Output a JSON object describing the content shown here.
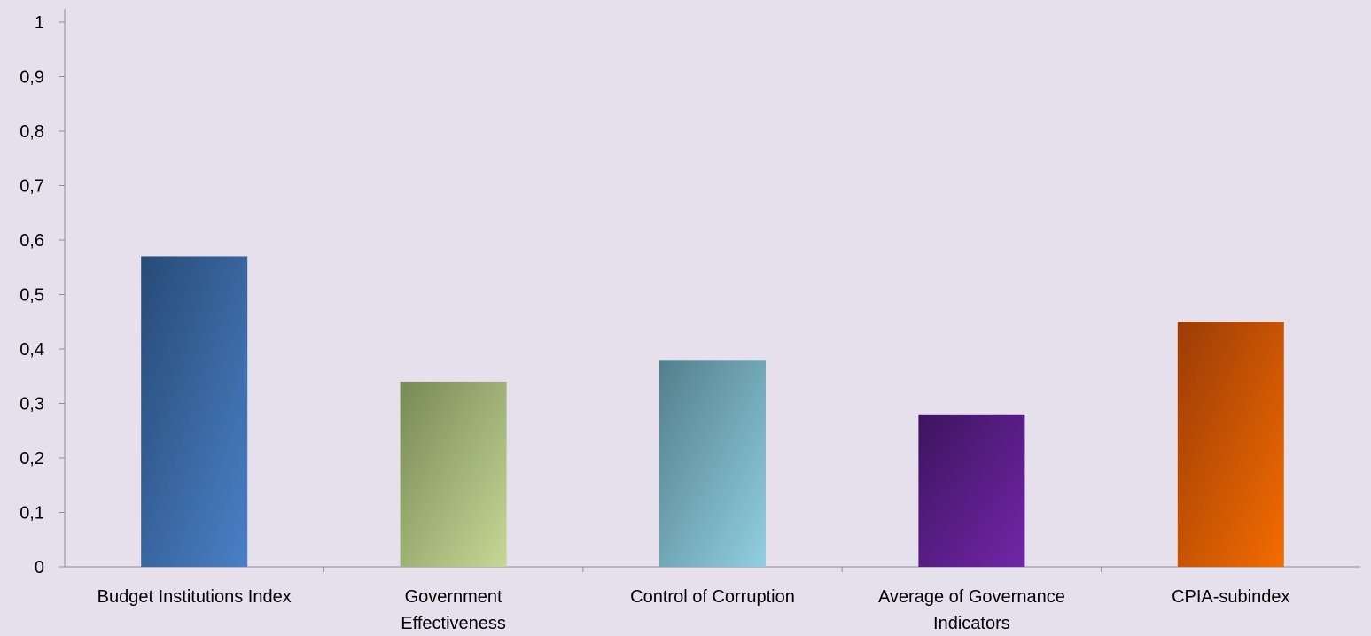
{
  "colors": {
    "background": "#e6e0ec",
    "axis": "#8c8c8c"
  },
  "chart_data": {
    "type": "bar",
    "title": "",
    "xlabel": "",
    "ylabel": "",
    "ylim": [
      0,
      1
    ],
    "y_ticks": [
      0,
      0.1,
      0.2,
      0.3,
      0.4,
      0.5,
      0.6,
      0.7,
      0.8,
      0.9,
      1
    ],
    "y_tick_labels": [
      "0",
      "0,1",
      "0,2",
      "0,3",
      "0,4",
      "0,5",
      "0,6",
      "0,7",
      "0,8",
      "0,9",
      "1"
    ],
    "grid": false,
    "legend": "none",
    "categories": [
      "Budget Institutions Index",
      "Government Effectiveness",
      "Control of Corruption",
      "Average of Governance Indicators",
      "CPIA-subindex"
    ],
    "category_label_lines": [
      [
        "Budget Institutions Index"
      ],
      [
        "Government",
        "Effectiveness"
      ],
      [
        "Control of Corruption"
      ],
      [
        "Average of Governance",
        "Indicators"
      ],
      [
        "CPIA-subindex"
      ]
    ],
    "values": [
      0.57,
      0.34,
      0.38,
      0.28,
      0.45
    ],
    "bar_colors": [
      [
        "#274b77",
        "#4a80c6"
      ],
      [
        "#788a55",
        "#c5d896"
      ],
      [
        "#537f8c",
        "#91cfe0"
      ],
      [
        "#3d145f",
        "#7226a8"
      ],
      [
        "#9b3c07",
        "#f46c00"
      ]
    ]
  }
}
